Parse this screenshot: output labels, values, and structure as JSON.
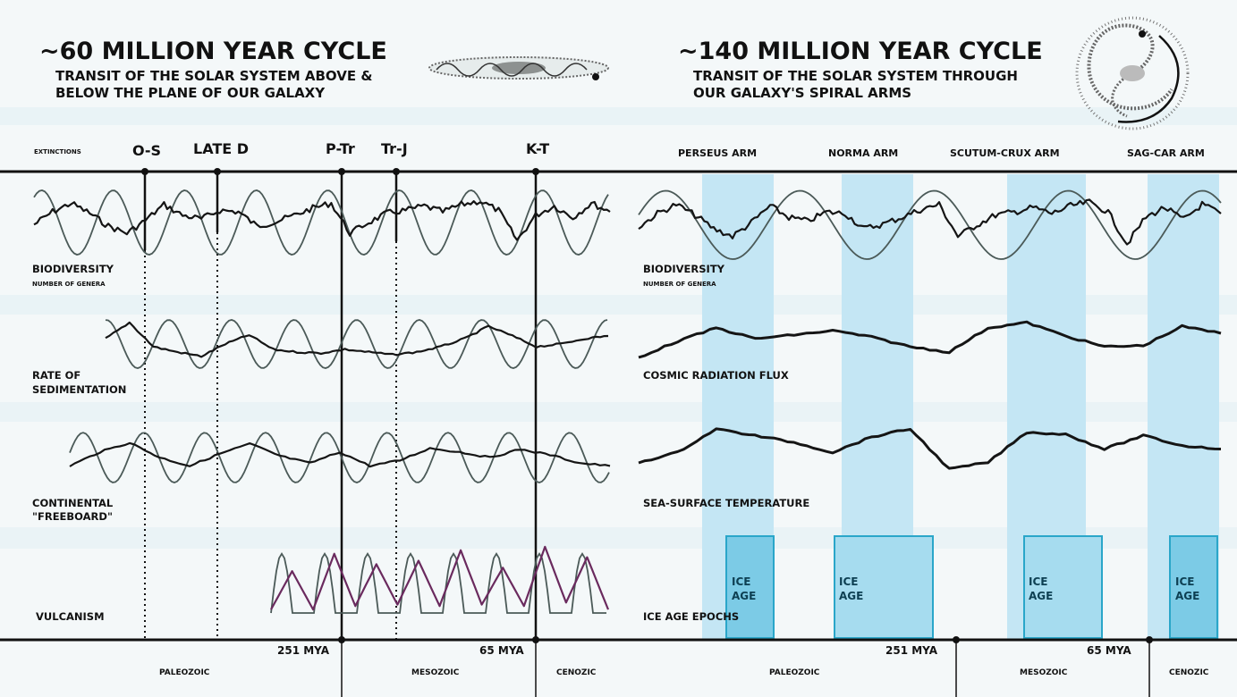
{
  "left_panel": {
    "title": "~60 MILLION YEAR CYCLE",
    "subtitle_line1": "TRANSIT OF THE SOLAR SYSTEM ABOVE &",
    "subtitle_line2": "BELOW THE PLANE OF OUR GALAXY",
    "row_header": "EXTINCTIONS",
    "events": [
      "O-S",
      "LATE D",
      "P-Tr",
      "Tr-J",
      "K-T"
    ],
    "row_labels": {
      "biodiversity": "BIODIVERSITY",
      "biodiversity_sub": "NUMBER OF GENERA",
      "sedimentation_1": "RATE OF",
      "sedimentation_2": "SEDIMENTATION",
      "freeboard_1": "CONTINENTAL",
      "freeboard_2": "\"FREEBOARD\"",
      "volcanism": "VULCANISM"
    },
    "eras": [
      "PALEOZOIC",
      "MESOZOIC",
      "CENOZIC"
    ],
    "mya_markers": [
      "251 MYA",
      "65 MYA"
    ]
  },
  "right_panel": {
    "title": "~140 MILLION YEAR CYCLE",
    "subtitle_line1": "TRANSIT OF THE SOLAR SYSTEM THROUGH",
    "subtitle_line2": "OUR GALAXY'S SPIRAL ARMS",
    "arms": [
      "PERSEUS ARM",
      "NORMA ARM",
      "SCUTUM-CRUX ARM",
      "SAG-CAR ARM"
    ],
    "row_labels": {
      "biodiversity": "BIODIVERSITY",
      "biodiversity_sub": "NUMBER OF GENERA",
      "radiation": "COSMIC RADIATION FLUX",
      "sst": "SEA-SURFACE TEMPERATURE",
      "ice_epochs": "ICE AGE EPOCHS"
    },
    "ice_label_1": "ICE",
    "ice_label_2": "AGE",
    "eras": [
      "PALEOZOIC",
      "MESOZOIC",
      "CENOZIC"
    ],
    "mya_markers": [
      "251 MYA",
      "65 MYA"
    ]
  },
  "colors": {
    "band": "#bfe3f2",
    "band_edge": "#a9d8ec",
    "ice_box": "#5fc3e0",
    "cycle_line": "#4b5a58",
    "data_line": "#151515",
    "volcanism_line": "#6a2a5e"
  },
  "chart_data": {
    "type": "line",
    "series": [
      {
        "name": "BIODIVERSITY",
        "values": [
          0.42,
          0.6,
          0.72,
          0.58,
          0.4,
          0.3,
          0.48,
          0.7,
          0.55,
          0.5,
          0.62,
          0.6,
          0.4,
          0.46,
          0.55,
          0.65,
          0.72,
          0.3,
          0.45,
          0.58,
          0.62,
          0.68,
          0.6,
          0.7,
          0.75,
          0.62,
          0.2,
          0.55,
          0.68,
          0.52,
          0.72,
          0.6
        ]
      },
      {
        "name": "RATE OF SEDIMENTATION",
        "values": [
          0.55,
          0.85,
          0.4,
          0.3,
          0.22,
          0.45,
          0.62,
          0.35,
          0.3,
          0.28,
          0.35,
          0.3,
          0.25,
          0.3,
          0.4,
          0.55,
          0.78,
          0.6,
          0.4,
          0.45,
          0.55,
          0.6
        ]
      },
      {
        "name": "CONTINENTAL \"FREEBOARD\"",
        "values": [
          0.3,
          0.55,
          0.72,
          0.45,
          0.3,
          0.52,
          0.7,
          0.48,
          0.35,
          0.55,
          0.3,
          0.4,
          0.62,
          0.55,
          0.45,
          0.6,
          0.5,
          0.35,
          0.3
        ]
      },
      {
        "name": "VULCANISM",
        "values": [
          0.05,
          0.6,
          0.05,
          0.85,
          0.1,
          0.7,
          0.12,
          0.75,
          0.1,
          0.9,
          0.12,
          0.65,
          0.1,
          0.95,
          0.15,
          0.8,
          0.05
        ]
      },
      {
        "name": "COSMIC RADIATION FLUX",
        "values": [
          0.2,
          0.5,
          0.75,
          0.55,
          0.62,
          0.7,
          0.58,
          0.4,
          0.3,
          0.75,
          0.85,
          0.6,
          0.4,
          0.42,
          0.78,
          0.65
        ]
      },
      {
        "name": "SEA-SURFACE TEMPERATURE",
        "values": [
          0.3,
          0.45,
          0.8,
          0.7,
          0.6,
          0.45,
          0.68,
          0.8,
          0.2,
          0.3,
          0.75,
          0.72,
          0.5,
          0.7,
          0.55,
          0.5
        ]
      },
      {
        "name": "ICE AGE EPOCHS",
        "values": [
          1,
          0,
          1,
          0,
          1,
          0,
          1
        ]
      }
    ]
  }
}
